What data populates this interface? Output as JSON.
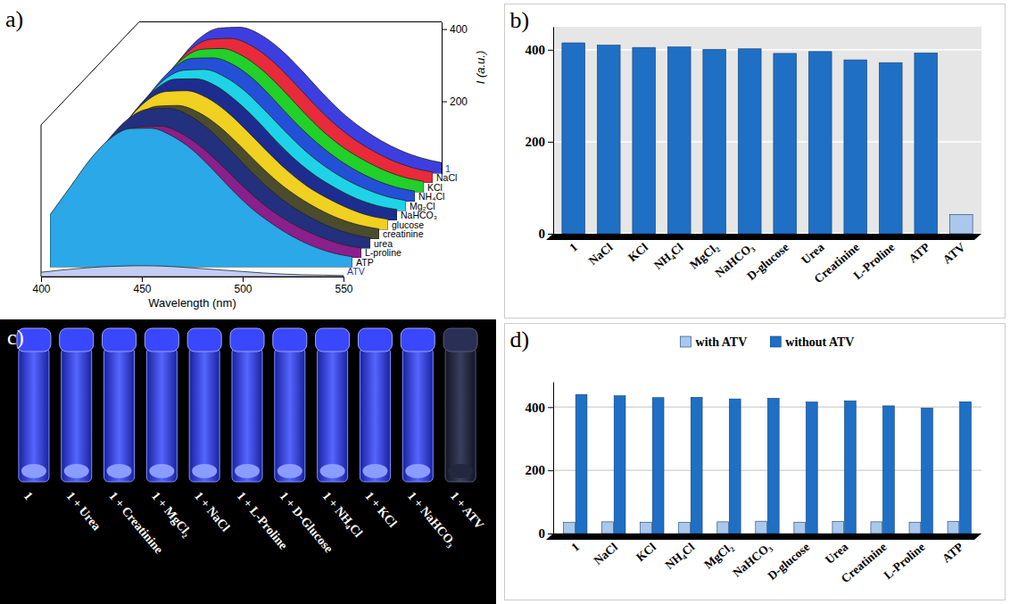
{
  "chart_data": [
    {
      "type": "area",
      "panel": "a)",
      "x": [
        400,
        410,
        420,
        430,
        440,
        450,
        460,
        470,
        480,
        490,
        500,
        510,
        520,
        530,
        540,
        550
      ],
      "xlim": [
        400,
        550
      ],
      "xticks": [
        400,
        450,
        500,
        550
      ],
      "xlabel": "Wavelength (nm)",
      "ylim": [
        0,
        420
      ],
      "yticks": [
        200,
        400
      ],
      "ylabel": "I (a.u.)",
      "series": [
        {
          "name": "1",
          "color": "#3d3ee0",
          "values": [
            152,
            233,
            314,
            375,
            403,
            405,
            385,
            344,
            289,
            228,
            172,
            127,
            91,
            63,
            43,
            30
          ]
        },
        {
          "name": "NaCl",
          "color": "#e82a3a",
          "values": [
            150,
            230,
            310,
            370,
            398,
            400,
            380,
            340,
            285,
            225,
            170,
            125,
            90,
            62,
            42,
            30
          ]
        },
        {
          "name": "KCl",
          "color": "#22d02a",
          "values": [
            149,
            229,
            308,
            368,
            396,
            398,
            378,
            338,
            284,
            224,
            169,
            124,
            90,
            62,
            42,
            30
          ]
        },
        {
          "name": "NH₄Cl",
          "color": "#2450d8",
          "values": [
            150,
            228,
            309,
            369,
            397,
            398,
            379,
            339,
            283,
            223,
            170,
            125,
            89,
            61,
            41,
            29
          ]
        },
        {
          "name": "Mg₂Cl",
          "color": "#1fd3e6",
          "values": [
            147,
            225,
            304,
            363,
            390,
            392,
            372,
            333,
            279,
            221,
            167,
            123,
            88,
            61,
            41,
            29
          ]
        },
        {
          "name": "NaHCO₃",
          "color": "#1c2d8f",
          "values": [
            148,
            226,
            303,
            362,
            391,
            392,
            373,
            332,
            280,
            220,
            166,
            122,
            88,
            60,
            41,
            30
          ]
        },
        {
          "name": "glucose",
          "color": "#f0d020",
          "values": [
            144,
            221,
            298,
            356,
            383,
            385,
            366,
            327,
            274,
            217,
            164,
            120,
            87,
            60,
            40,
            29
          ]
        },
        {
          "name": "creatinine",
          "color": "#4b4b2e",
          "values": [
            139,
            213,
            287,
            342,
            368,
            370,
            352,
            315,
            264,
            208,
            157,
            116,
            83,
            57,
            39,
            28
          ]
        },
        {
          "name": "urea",
          "color": "#23307e",
          "values": [
            146,
            223,
            301,
            359,
            386,
            388,
            369,
            330,
            276,
            218,
            165,
            121,
            87,
            60,
            41,
            29
          ]
        },
        {
          "name": "L-proline",
          "color": "#8b1f8b",
          "values": [
            137,
            210,
            283,
            338,
            363,
            365,
            347,
            310,
            260,
            205,
            155,
            114,
            82,
            57,
            38,
            27
          ]
        },
        {
          "name": "ATP",
          "color": "#2aa8e8",
          "values": [
            145,
            222,
            299,
            357,
            384,
            385,
            365,
            328,
            275,
            216,
            163,
            121,
            86,
            59,
            40,
            29
          ]
        },
        {
          "name": "ATV",
          "color": "#c3cdf2",
          "values": [
            12,
            18,
            23,
            27,
            29,
            30,
            29,
            26,
            22,
            18,
            14,
            10,
            7,
            5,
            4,
            3
          ]
        }
      ]
    },
    {
      "type": "bar",
      "panel": "b)",
      "categories": [
        "1",
        "NaCl",
        "KCl",
        "NH₄Cl",
        "MgCl₂",
        "NaHCO₃",
        "D-glucose",
        "Urea",
        "Creatinine",
        "L-Proline",
        "ATP",
        "ATV"
      ],
      "values": [
        415,
        410,
        405,
        406,
        401,
        402,
        392,
        396,
        378,
        372,
        393,
        42
      ],
      "colors": [
        "#1f6fc5",
        "#1f6fc5",
        "#1f6fc5",
        "#1f6fc5",
        "#1f6fc5",
        "#1f6fc5",
        "#1f6fc5",
        "#1f6fc5",
        "#1f6fc5",
        "#1f6fc5",
        "#1f6fc5",
        "#a9c8ec"
      ],
      "ylim": [
        0,
        450
      ],
      "yticks": [
        0,
        200,
        400
      ],
      "grid": true
    },
    {
      "type": "bar",
      "panel": "d)",
      "categories": [
        "1",
        "NaCl",
        "KCl",
        "NH₄Cl",
        "MgCl₂",
        "NaHCO₃",
        "D-glucose",
        "Urea",
        "Creatinine",
        "L-Proline",
        "ATP"
      ],
      "series": [
        {
          "name": "with ATV",
          "color": "#a9c8ec",
          "values": [
            35,
            37,
            36,
            35,
            37,
            39,
            36,
            38,
            37,
            36,
            38
          ]
        },
        {
          "name": "without ATV",
          "color": "#1f6fc5",
          "values": [
            440,
            436,
            430,
            431,
            426,
            428,
            416,
            420,
            404,
            397,
            417
          ]
        }
      ],
      "ylim": [
        0,
        480
      ],
      "yticks": [
        0,
        200,
        400
      ],
      "grid": true,
      "legend": "top"
    }
  ],
  "photo": {
    "panel": "c)",
    "labels": [
      "1",
      "1 + Urea",
      "1 + Creatinine",
      "1 + MgCl₂",
      "1 + NaCl",
      "1 + L-Proline",
      "1 + D-Glucose",
      "1 + NH₄Cl",
      "1 + KCl",
      "1 + NaHCO₃",
      "1 + ATV"
    ]
  }
}
